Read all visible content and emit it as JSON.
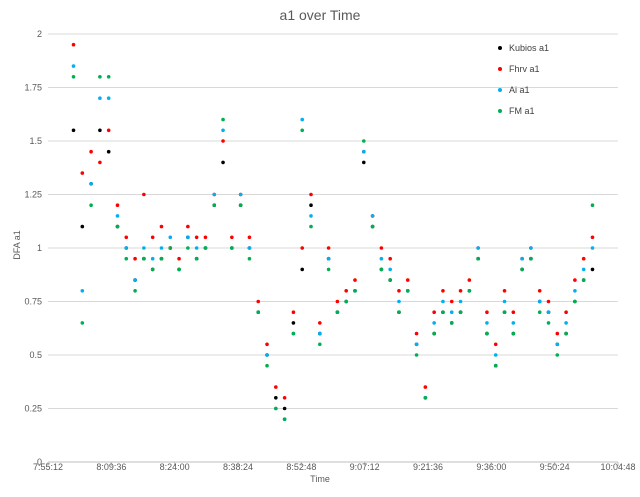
{
  "chart_data": {
    "type": "scatter",
    "title": "a1 over Time",
    "xlabel": "Time",
    "ylabel": "DFA a1",
    "xlim": [
      "7:55:12",
      "10:04:48"
    ],
    "ylim": [
      0,
      2
    ],
    "x_ticks": [
      "7:55:12",
      "8:09:36",
      "8:24:00",
      "8:38:24",
      "8:52:48",
      "9:07:12",
      "9:21:36",
      "9:36:00",
      "9:50:24",
      "10:04:48"
    ],
    "y_ticks": [
      "0",
      "0.25",
      "0.5",
      "0.75",
      "1",
      "1.25",
      "1.5",
      "1.75",
      "2"
    ],
    "grid": "horizontal",
    "legend_position": "top-right",
    "series": [
      {
        "name": "Kubios a1",
        "color": "#000000",
        "x": [
          "8:01:00",
          "8:03:00",
          "8:05:00",
          "8:07:00",
          "8:09:00",
          "8:11:00",
          "8:13:00",
          "8:15:00",
          "8:17:00",
          "8:19:00",
          "8:21:00",
          "8:23:00",
          "8:25:00",
          "8:27:00",
          "8:29:00",
          "8:31:00",
          "8:33:00",
          "8:35:00",
          "8:37:00",
          "8:39:00",
          "8:41:00",
          "8:43:00",
          "8:45:00",
          "8:47:00",
          "8:49:00",
          "8:51:00",
          "8:53:00",
          "8:55:00",
          "8:57:00",
          "8:59:00",
          "9:01:00",
          "9:03:00",
          "9:05:00",
          "9:07:00",
          "9:09:00",
          "9:11:00",
          "9:13:00",
          "9:15:00",
          "9:17:00",
          "9:19:00",
          "9:21:00",
          "9:23:00",
          "9:25:00",
          "9:27:00",
          "9:29:00",
          "9:31:00",
          "9:33:00",
          "9:35:00",
          "9:37:00",
          "9:39:00",
          "9:41:00",
          "9:43:00",
          "9:45:00",
          "9:47:00",
          "9:49:00",
          "9:51:00",
          "9:53:00",
          "9:55:00",
          "9:57:00",
          "9:59:00"
        ],
        "y": [
          1.55,
          1.1,
          1.3,
          1.55,
          1.45,
          1.1,
          1.0,
          0.85,
          0.95,
          0.9,
          0.95,
          1.0,
          0.9,
          1.05,
          0.95,
          1.0,
          1.2,
          1.4,
          1.0,
          1.2,
          1.0,
          0.7,
          0.5,
          0.3,
          0.25,
          0.65,
          0.9,
          1.2,
          0.6,
          0.95,
          0.7,
          0.75,
          0.8,
          1.4,
          1.1,
          0.9,
          0.85,
          0.7,
          0.8,
          0.55,
          0.3,
          0.6,
          0.7,
          0.65,
          0.7,
          0.8,
          0.95,
          0.6,
          0.45,
          0.7,
          0.6,
          0.9,
          0.95,
          0.75,
          0.7,
          0.55,
          0.6,
          0.75,
          0.85,
          0.9
        ]
      },
      {
        "name": "Fhrv a1",
        "color": "#ff0000",
        "x": [
          "8:01:00",
          "8:03:00",
          "8:05:00",
          "8:07:00",
          "8:09:00",
          "8:11:00",
          "8:13:00",
          "8:15:00",
          "8:17:00",
          "8:19:00",
          "8:21:00",
          "8:23:00",
          "8:25:00",
          "8:27:00",
          "8:29:00",
          "8:31:00",
          "8:33:00",
          "8:35:00",
          "8:37:00",
          "8:39:00",
          "8:41:00",
          "8:43:00",
          "8:45:00",
          "8:47:00",
          "8:49:00",
          "8:51:00",
          "8:53:00",
          "8:55:00",
          "8:57:00",
          "8:59:00",
          "9:01:00",
          "9:03:00",
          "9:05:00",
          "9:07:00",
          "9:09:00",
          "9:11:00",
          "9:13:00",
          "9:15:00",
          "9:17:00",
          "9:19:00",
          "9:21:00",
          "9:23:00",
          "9:25:00",
          "9:27:00",
          "9:29:00",
          "9:31:00",
          "9:33:00",
          "9:35:00",
          "9:37:00",
          "9:39:00",
          "9:41:00",
          "9:43:00",
          "9:45:00",
          "9:47:00",
          "9:49:00",
          "9:51:00",
          "9:53:00",
          "9:55:00",
          "9:57:00",
          "9:59:00"
        ],
        "y": [
          1.95,
          1.35,
          1.45,
          1.4,
          1.55,
          1.2,
          1.05,
          0.95,
          1.25,
          1.05,
          1.1,
          1.0,
          0.95,
          1.1,
          1.05,
          1.05,
          1.25,
          1.5,
          1.05,
          1.25,
          1.05,
          0.75,
          0.55,
          0.35,
          0.3,
          0.7,
          1.0,
          1.25,
          0.65,
          1.0,
          0.75,
          0.8,
          0.85,
          1.45,
          1.15,
          1.0,
          0.95,
          0.8,
          0.85,
          0.6,
          0.35,
          0.7,
          0.8,
          0.75,
          0.8,
          0.85,
          1.0,
          0.7,
          0.55,
          0.8,
          0.7,
          0.95,
          1.0,
          0.8,
          0.75,
          0.6,
          0.7,
          0.85,
          0.95,
          1.05
        ]
      },
      {
        "name": "Ai a1",
        "color": "#00b0f0",
        "x": [
          "8:01:00",
          "8:03:00",
          "8:05:00",
          "8:07:00",
          "8:09:00",
          "8:11:00",
          "8:13:00",
          "8:15:00",
          "8:17:00",
          "8:19:00",
          "8:21:00",
          "8:23:00",
          "8:25:00",
          "8:27:00",
          "8:29:00",
          "8:31:00",
          "8:33:00",
          "8:35:00",
          "8:37:00",
          "8:39:00",
          "8:41:00",
          "8:43:00",
          "8:45:00",
          "8:47:00",
          "8:49:00",
          "8:51:00",
          "8:53:00",
          "8:55:00",
          "8:57:00",
          "8:59:00",
          "9:01:00",
          "9:03:00",
          "9:05:00",
          "9:07:00",
          "9:09:00",
          "9:11:00",
          "9:13:00",
          "9:15:00",
          "9:17:00",
          "9:19:00",
          "9:21:00",
          "9:23:00",
          "9:25:00",
          "9:27:00",
          "9:29:00",
          "9:31:00",
          "9:33:00",
          "9:35:00",
          "9:37:00",
          "9:39:00",
          "9:41:00",
          "9:43:00",
          "9:45:00",
          "9:47:00",
          "9:49:00",
          "9:51:00",
          "9:53:00",
          "9:55:00",
          "9:57:00",
          "9:59:00"
        ],
        "y": [
          1.85,
          0.8,
          1.3,
          1.7,
          1.7,
          1.15,
          1.0,
          0.85,
          1.0,
          0.95,
          1.0,
          1.05,
          0.9,
          1.05,
          1.0,
          1.0,
          1.25,
          1.55,
          1.0,
          1.25,
          1.0,
          0.7,
          0.5,
          0.25,
          0.2,
          0.6,
          1.6,
          1.15,
          0.6,
          0.95,
          0.7,
          0.75,
          0.8,
          1.45,
          1.15,
          0.95,
          0.9,
          0.75,
          0.8,
          0.55,
          0.3,
          0.65,
          0.75,
          0.7,
          0.75,
          0.8,
          1.0,
          0.65,
          0.5,
          0.75,
          0.65,
          0.95,
          1.0,
          0.75,
          0.7,
          0.55,
          0.65,
          0.8,
          0.9,
          1.0
        ]
      },
      {
        "name": "FM a1",
        "color": "#00b050",
        "x": [
          "8:01:00",
          "8:03:00",
          "8:05:00",
          "8:07:00",
          "8:09:00",
          "8:11:00",
          "8:13:00",
          "8:15:00",
          "8:17:00",
          "8:19:00",
          "8:21:00",
          "8:23:00",
          "8:25:00",
          "8:27:00",
          "8:29:00",
          "8:31:00",
          "8:33:00",
          "8:35:00",
          "8:37:00",
          "8:39:00",
          "8:41:00",
          "8:43:00",
          "8:45:00",
          "8:47:00",
          "8:49:00",
          "8:51:00",
          "8:53:00",
          "8:55:00",
          "8:57:00",
          "8:59:00",
          "9:01:00",
          "9:03:00",
          "9:05:00",
          "9:07:00",
          "9:09:00",
          "9:11:00",
          "9:13:00",
          "9:15:00",
          "9:17:00",
          "9:19:00",
          "9:21:00",
          "9:23:00",
          "9:25:00",
          "9:27:00",
          "9:29:00",
          "9:31:00",
          "9:33:00",
          "9:35:00",
          "9:37:00",
          "9:39:00",
          "9:41:00",
          "9:43:00",
          "9:45:00",
          "9:47:00",
          "9:49:00",
          "9:51:00",
          "9:53:00",
          "9:55:00",
          "9:57:00",
          "9:59:00"
        ],
        "y": [
          1.8,
          0.65,
          1.2,
          1.8,
          1.8,
          1.1,
          0.95,
          0.8,
          0.95,
          0.9,
          0.95,
          1.0,
          0.9,
          1.0,
          0.95,
          1.0,
          1.2,
          1.6,
          1.0,
          1.2,
          0.95,
          0.7,
          0.45,
          0.25,
          0.2,
          0.6,
          1.55,
          1.1,
          0.55,
          0.9,
          0.7,
          0.75,
          0.8,
          1.5,
          1.1,
          0.9,
          0.85,
          0.7,
          0.8,
          0.5,
          0.3,
          0.6,
          0.7,
          0.65,
          0.7,
          0.8,
          0.95,
          0.6,
          0.45,
          0.7,
          0.6,
          0.9,
          0.95,
          0.7,
          0.65,
          0.5,
          0.6,
          0.75,
          0.85,
          1.2
        ]
      }
    ]
  }
}
